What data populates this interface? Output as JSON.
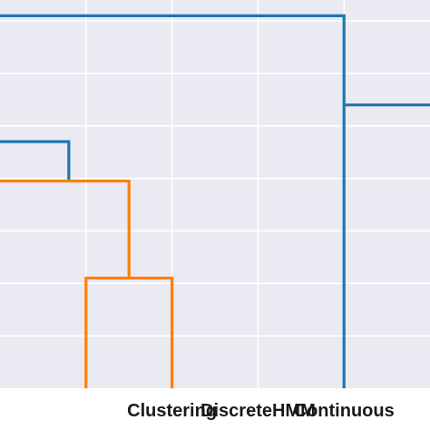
{
  "chart_data": {
    "type": "dendrogram",
    "title": "",
    "xlabel": "",
    "ylabel": "",
    "xlim": [
      -5,
      45
    ],
    "ylim": [
      0,
      7.4
    ],
    "grid": true,
    "legend": "none",
    "x_ticks": [
      5,
      15,
      25,
      35
    ],
    "x_tick_labels": [
      "",
      "Clustering",
      "DiscreteHMM",
      "Continuous"
    ],
    "y_grid": [
      1,
      2,
      3,
      4,
      5,
      6,
      7
    ],
    "colors": {
      "blue": "#1f77b4",
      "orange": "#ff7f0e",
      "plot_background": "#eaeaf2",
      "grid": "#ffffff"
    },
    "links": [
      {
        "color": "blue",
        "x_left": -5,
        "x_right": 3,
        "height": 4.7,
        "left_bottom": 4.7,
        "right_bottom": 3.95
      },
      {
        "color": "orange",
        "x_left": -5,
        "x_right": 10,
        "height": 3.95,
        "left_bottom": 3.95,
        "right_bottom": 2.1
      },
      {
        "color": "orange",
        "x_left": 5,
        "x_right": 15,
        "height": 2.1,
        "left_bottom": 0,
        "right_bottom": 0
      },
      {
        "color": "blue",
        "x_left": -5,
        "x_right": 35,
        "height": 7.1,
        "left_bottom": 7.1,
        "right_bottom": 5.4
      },
      {
        "color": "blue",
        "x_left": 35,
        "x_right": 45,
        "height": 5.4,
        "left_bottom": 0,
        "right_bottom": 5.4
      }
    ]
  }
}
